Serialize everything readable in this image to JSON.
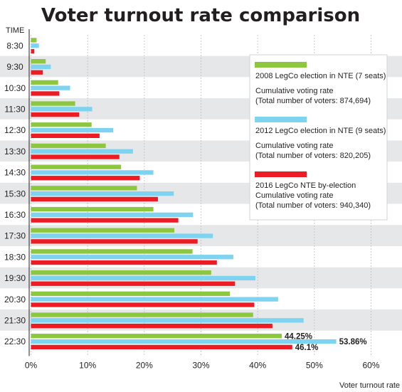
{
  "chart_data": {
    "type": "bar",
    "orientation": "horizontal",
    "title": "Voter turnout rate comparison",
    "ylabel": "TIME",
    "xlabel": "Voter turnout rate",
    "xlim": [
      0,
      60
    ],
    "x_ticks": [
      "0%",
      "10%",
      "20%",
      "30%",
      "40%",
      "50%",
      "60%"
    ],
    "grid": true,
    "legend_position": "top-right",
    "categories": [
      "8:30",
      "9:30",
      "10:30",
      "11:30",
      "12:30",
      "13:30",
      "14:30",
      "15:30",
      "16:30",
      "17:30",
      "18:30",
      "19:30",
      "20:30",
      "21:30",
      "22:30"
    ],
    "series": [
      {
        "name": "2008 LegCo election in NTE (7 seats)",
        "legend_lines": [
          "Cumulative voting rate",
          "(Total number of voters: 874,694)"
        ],
        "color": "#8dc63f",
        "values": [
          1.0,
          2.6,
          4.8,
          7.8,
          10.7,
          13.2,
          15.9,
          18.7,
          21.6,
          25.3,
          28.5,
          31.8,
          35.1,
          39.2,
          44.25
        ]
      },
      {
        "name": "2012 LegCo election in NTE (9 seats)",
        "legend_lines": [
          "Cumulative voting rate",
          "(Total number of voters: 820,205)"
        ],
        "color": "#7dd3f0",
        "values": [
          1.4,
          3.5,
          6.9,
          10.8,
          14.5,
          18.0,
          21.6,
          25.2,
          28.6,
          32.1,
          35.7,
          39.6,
          43.6,
          48.1,
          53.86
        ]
      },
      {
        "name": "2016 LegCo NTE by-election",
        "legend_lines": [
          "Cumulative voting rate",
          "(Total number of voters: 940,340)"
        ],
        "color": "#ed1c24",
        "values": [
          0.6,
          2.1,
          5.0,
          8.5,
          12.1,
          15.6,
          19.2,
          22.4,
          26.0,
          29.4,
          32.8,
          36.0,
          39.4,
          42.6,
          46.1
        ]
      }
    ],
    "data_labels": [
      {
        "series": 0,
        "category": "22:30",
        "text": "44.25%"
      },
      {
        "series": 1,
        "category": "22:30",
        "text": "53.86%"
      },
      {
        "series": 2,
        "category": "22:30",
        "text": "46.1%"
      }
    ]
  }
}
